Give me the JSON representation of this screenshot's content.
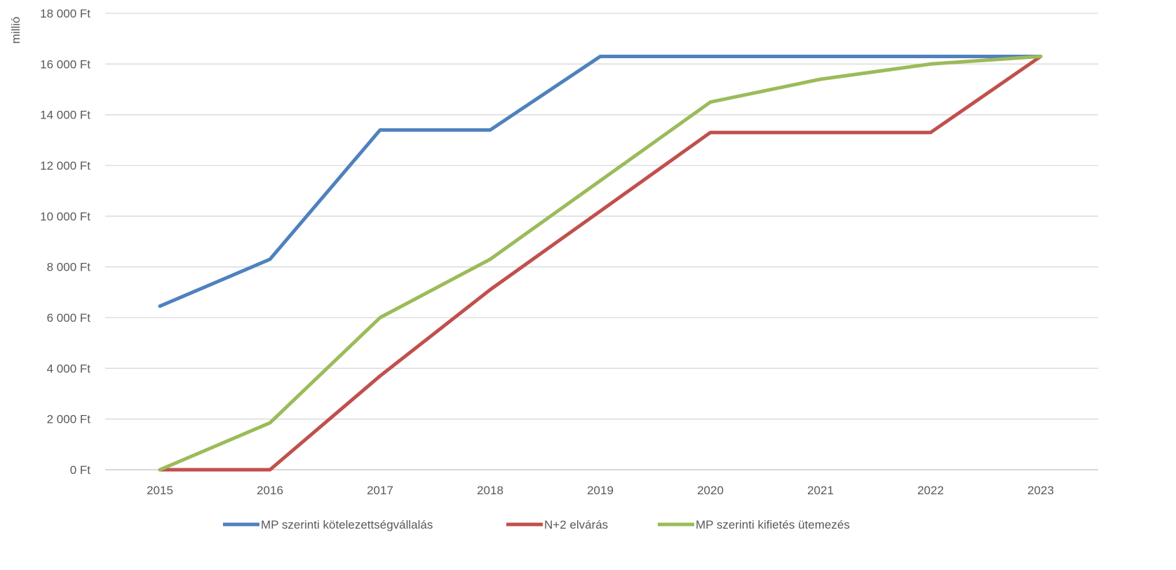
{
  "chart_data": {
    "type": "line",
    "title": "",
    "ylabel": "millió",
    "xlabel": "",
    "x": [
      "2015",
      "2016",
      "2017",
      "2018",
      "2019",
      "2020",
      "2021",
      "2022",
      "2023"
    ],
    "yticks": [
      "0 Ft",
      "2 000 Ft",
      "4 000 Ft",
      "6 000 Ft",
      "8 000 Ft",
      "10 000 Ft",
      "12 000 Ft",
      "14 000 Ft",
      "16 000 Ft",
      "18 000 Ft"
    ],
    "ylim": [
      0,
      18000
    ],
    "grid": true,
    "legend_position": "bottom",
    "series": [
      {
        "name": "MP szerinti  kötelezettségvállalás",
        "color": "#4F81BD",
        "values": [
          6450,
          8300,
          13400,
          13400,
          16300,
          16300,
          16300,
          16300,
          16300
        ]
      },
      {
        "name": "N+2 elvárás",
        "color": "#C0504D",
        "values": [
          0,
          0,
          3700,
          7100,
          10200,
          13300,
          13300,
          13300,
          16300
        ]
      },
      {
        "name": "MP szerinti kifietés ütemezés",
        "color": "#9BBB59",
        "values": [
          0,
          1850,
          6000,
          8300,
          11400,
          14500,
          15400,
          16000,
          16300
        ]
      }
    ]
  }
}
